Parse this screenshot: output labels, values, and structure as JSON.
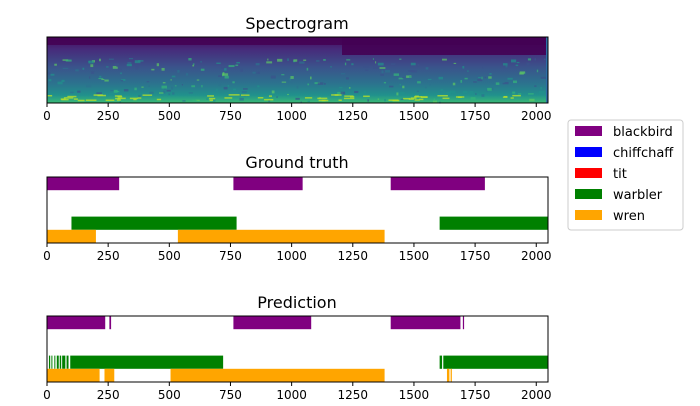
{
  "chart_data": [
    {
      "type": "heatmap",
      "title": "Spectrogram",
      "xlim": [
        0,
        2048
      ],
      "xticks": [
        0,
        250,
        500,
        750,
        1000,
        1250,
        1500,
        1750,
        2000
      ],
      "colormap": "viridis"
    },
    {
      "type": "timeline",
      "title": "Ground truth",
      "xlim": [
        0,
        2048
      ],
      "xticks": [
        0,
        250,
        500,
        750,
        1000,
        1250,
        1500,
        1750,
        2000
      ],
      "tracks": [
        "blackbird",
        "chiffchaff",
        "tit",
        "warbler",
        "wren"
      ],
      "series": [
        {
          "name": "blackbird",
          "color": "#800080",
          "segments": [
            [
              0,
              295
            ],
            [
              762,
              1045
            ],
            [
              1405,
              1790
            ]
          ]
        },
        {
          "name": "chiffchaff",
          "color": "#0000ff",
          "segments": []
        },
        {
          "name": "tit",
          "color": "#ff0000",
          "segments": []
        },
        {
          "name": "warbler",
          "color": "#008000",
          "segments": [
            [
              100,
              775
            ],
            [
              1605,
              2048
            ]
          ]
        },
        {
          "name": "wren",
          "color": "#ffa500",
          "segments": [
            [
              0,
              200
            ],
            [
              535,
              1380
            ]
          ]
        }
      ]
    },
    {
      "type": "timeline",
      "title": "Prediction",
      "xlim": [
        0,
        2048
      ],
      "xticks": [
        0,
        250,
        500,
        750,
        1000,
        1250,
        1500,
        1750,
        2000
      ],
      "tracks": [
        "blackbird",
        "chiffchaff",
        "tit",
        "warbler",
        "wren"
      ],
      "series": [
        {
          "name": "blackbird",
          "color": "#800080",
          "segments": [
            [
              0,
              238
            ],
            [
              255,
              262
            ],
            [
              762,
              1080
            ],
            [
              1405,
              1690
            ],
            [
              1700,
              1705
            ]
          ]
        },
        {
          "name": "chiffchaff",
          "color": "#0000ff",
          "segments": []
        },
        {
          "name": "tit",
          "color": "#ff0000",
          "segments": []
        },
        {
          "name": "warbler",
          "color": "#008000",
          "segments": [
            [
              8,
              13
            ],
            [
              18,
              22
            ],
            [
              30,
              34
            ],
            [
              40,
              48
            ],
            [
              52,
              58
            ],
            [
              62,
              75
            ],
            [
              80,
              88
            ],
            [
              95,
              720
            ],
            [
              1605,
              1615
            ],
            [
              1620,
              2048
            ]
          ]
        },
        {
          "name": "wren",
          "color": "#ffa500",
          "segments": [
            [
              0,
              215
            ],
            [
              235,
              275
            ],
            [
              505,
              1380
            ],
            [
              1635,
              1645
            ],
            [
              1650,
              1655
            ]
          ]
        }
      ]
    }
  ],
  "legend": {
    "placement": "right",
    "entries": [
      {
        "label": "blackbird",
        "color": "#800080"
      },
      {
        "label": "chiffchaff",
        "color": "#0000ff"
      },
      {
        "label": "tit",
        "color": "#ff0000"
      },
      {
        "label": "warbler",
        "color": "#008000"
      },
      {
        "label": "wren",
        "color": "#ffa500"
      }
    ]
  }
}
